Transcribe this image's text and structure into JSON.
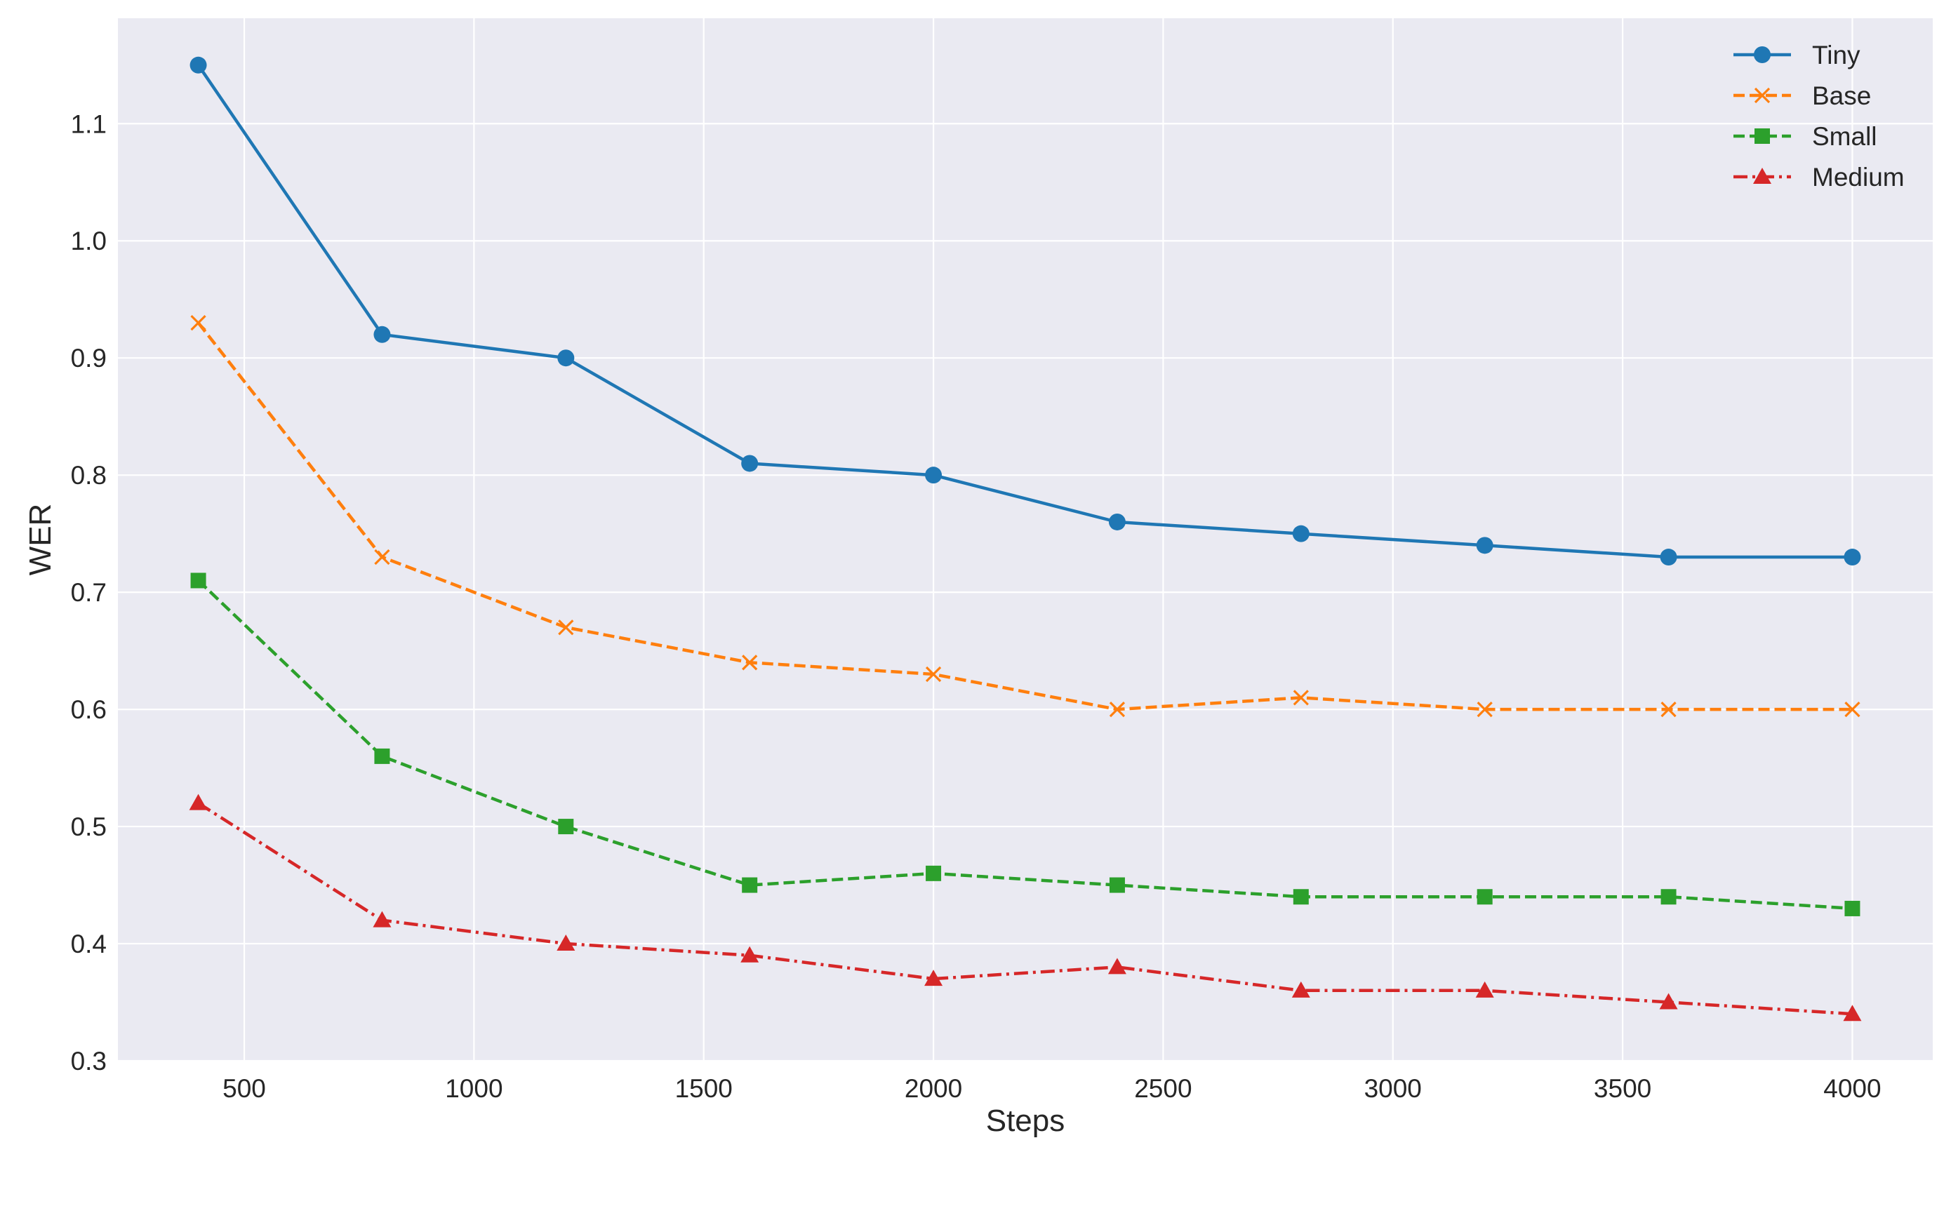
{
  "chart_data": {
    "type": "line",
    "title": "",
    "xlabel": "Steps",
    "ylabel": "WER",
    "x": [
      400,
      800,
      1200,
      1600,
      2000,
      2400,
      2800,
      3200,
      3600,
      4000
    ],
    "xlim": [
      225,
      4175
    ],
    "ylim": [
      0.3,
      1.19
    ],
    "xticks": [
      "500",
      "1000",
      "1500",
      "2000",
      "2500",
      "3000",
      "3500",
      "4000"
    ],
    "yticks": [
      "0.3",
      "0.4",
      "0.5",
      "0.6",
      "0.7",
      "0.8",
      "0.9",
      "1.0",
      "1.1"
    ],
    "grid": true,
    "legend_position": "top-right",
    "background": "#eaeaf2",
    "series": [
      {
        "name": "Tiny",
        "color": "#1f77b4",
        "marker": "circle",
        "linestyle": "solid",
        "values": [
          1.15,
          0.92,
          0.9,
          0.81,
          0.8,
          0.76,
          0.75,
          0.74,
          0.73,
          0.73
        ]
      },
      {
        "name": "Base",
        "color": "#ff7f0e",
        "marker": "x",
        "linestyle": "dashed",
        "values": [
          0.93,
          0.73,
          0.67,
          0.64,
          0.63,
          0.6,
          0.61,
          0.6,
          0.6,
          0.6
        ]
      },
      {
        "name": "Small",
        "color": "#2ca02c",
        "marker": "square",
        "linestyle": "dashed",
        "values": [
          0.71,
          0.56,
          0.5,
          0.45,
          0.46,
          0.45,
          0.44,
          0.44,
          0.44,
          0.43
        ]
      },
      {
        "name": "Medium",
        "color": "#d62728",
        "marker": "triangle",
        "linestyle": "dashdot",
        "values": [
          0.52,
          0.42,
          0.4,
          0.39,
          0.37,
          0.38,
          0.36,
          0.36,
          0.35,
          0.34
        ]
      }
    ]
  }
}
